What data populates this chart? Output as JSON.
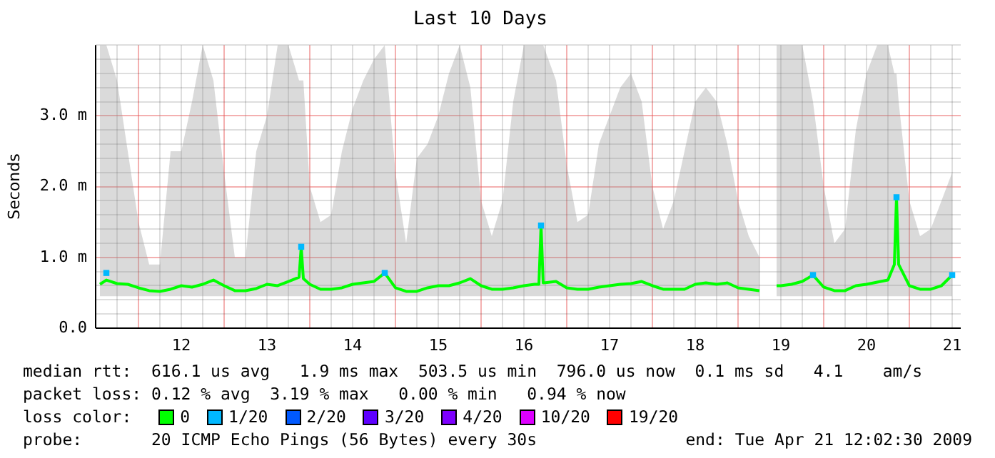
{
  "chart_data": {
    "type": "line",
    "title": "Last 10 Days",
    "ylabel": "Seconds",
    "legend_title": "loss color:",
    "legend": "bottom",
    "grid": true,
    "marker": "none",
    "line_style": "solid",
    "xlim": [
      11.0,
      21.1
    ],
    "ylim": [
      0,
      4
    ],
    "xticks": [
      {
        "value": 11.25,
        "label": null
      },
      {
        "value": 11.5,
        "label": null
      },
      {
        "value": 11.75,
        "label": null
      },
      12,
      {
        "value": 12.25,
        "label": null
      },
      {
        "value": 12.5,
        "label": null
      },
      {
        "value": 12.75,
        "label": null
      },
      13,
      {
        "value": 13.25,
        "label": null
      },
      {
        "value": 13.5,
        "label": null
      },
      {
        "value": 13.75,
        "label": null
      },
      14,
      {
        "value": 14.25,
        "label": null
      },
      {
        "value": 14.5,
        "label": null
      },
      {
        "value": 14.75,
        "label": null
      },
      15,
      {
        "value": 15.25,
        "label": null
      },
      {
        "value": 15.5,
        "label": null
      },
      {
        "value": 15.75,
        "label": null
      },
      16,
      {
        "value": 16.25,
        "label": null
      },
      {
        "value": 16.5,
        "label": null
      },
      {
        "value": 16.75,
        "label": null
      },
      17,
      {
        "value": 17.25,
        "label": null
      },
      {
        "value": 17.5,
        "label": null
      },
      {
        "value": 17.75,
        "label": null
      },
      18,
      {
        "value": 18.25,
        "label": null
      },
      {
        "value": 18.5,
        "label": null
      },
      {
        "value": 18.75,
        "label": null
      },
      19,
      {
        "value": 19.25,
        "label": null
      },
      {
        "value": 19.5,
        "label": null
      },
      {
        "value": 19.75,
        "label": null
      },
      20,
      {
        "value": 20.25,
        "label": null
      },
      {
        "value": 20.5,
        "label": null
      },
      {
        "value": 20.75,
        "label": null
      },
      21
    ],
    "yticks": [
      {
        "value": 0,
        "label": "0.0"
      },
      {
        "value": 0.2,
        "label": null
      },
      {
        "value": 0.4,
        "label": null
      },
      {
        "value": 0.6,
        "label": null
      },
      {
        "value": 0.8,
        "label": null
      },
      {
        "value": 1,
        "label": "1.0 m"
      },
      {
        "value": 1.2,
        "label": null
      },
      {
        "value": 1.4,
        "label": null
      },
      {
        "value": 1.6,
        "label": null
      },
      {
        "value": 1.8,
        "label": null
      },
      {
        "value": 2,
        "label": "2.0 m"
      },
      {
        "value": 2.2,
        "label": null
      },
      {
        "value": 2.4,
        "label": null
      },
      {
        "value": 2.6,
        "label": null
      },
      {
        "value": 2.8,
        "label": null
      },
      {
        "value": 3,
        "label": "3.0 m"
      },
      {
        "value": 3.2,
        "label": null
      },
      {
        "value": 3.4,
        "label": null
      },
      {
        "value": 3.6,
        "label": null
      },
      {
        "value": 3.8,
        "label": null
      },
      {
        "value": 4,
        "label": null
      }
    ],
    "x": [
      11.05,
      11.125,
      11.25,
      11.375,
      11.5,
      11.625,
      11.75,
      11.875,
      12.0,
      12.125,
      12.25,
      12.375,
      12.5,
      12.625,
      12.75,
      12.875,
      13.0,
      13.125,
      13.25,
      13.375,
      13.4,
      13.425,
      13.5,
      13.625,
      13.75,
      13.875,
      14.0,
      14.125,
      14.25,
      14.375,
      14.5,
      14.625,
      14.75,
      14.875,
      15.0,
      15.125,
      15.25,
      15.375,
      15.5,
      15.625,
      15.75,
      15.875,
      16.0,
      16.125,
      16.175,
      16.2,
      16.225,
      16.375,
      16.5,
      16.625,
      16.75,
      16.875,
      17.0,
      17.125,
      17.25,
      17.375,
      17.5,
      17.625,
      17.75,
      17.875,
      18.0,
      18.125,
      18.25,
      18.375,
      18.5,
      18.625,
      18.75,
      18.85,
      18.95,
      19.0,
      19.125,
      19.25,
      19.375,
      19.5,
      19.625,
      19.75,
      19.875,
      20.0,
      20.125,
      20.25,
      20.325,
      20.35,
      20.375,
      20.5,
      20.625,
      20.75,
      20.875,
      21.0
    ],
    "series": [
      {
        "name": "0",
        "color": "#00ff00",
        "values": [
          0.62,
          0.68,
          0.63,
          0.62,
          0.57,
          0.53,
          0.52,
          0.55,
          0.6,
          0.58,
          0.62,
          0.68,
          0.6,
          0.53,
          0.53,
          0.56,
          0.62,
          0.6,
          0.66,
          0.72,
          1.15,
          0.7,
          0.62,
          0.55,
          0.55,
          0.57,
          0.62,
          0.64,
          0.66,
          0.78,
          0.57,
          0.52,
          0.52,
          0.57,
          0.6,
          0.6,
          0.64,
          0.7,
          0.6,
          0.55,
          0.55,
          0.57,
          0.6,
          0.62,
          0.62,
          1.45,
          0.64,
          0.66,
          0.57,
          0.55,
          0.55,
          0.58,
          0.6,
          0.62,
          0.63,
          0.66,
          0.6,
          0.55,
          0.55,
          0.55,
          0.62,
          0.64,
          0.62,
          0.64,
          0.57,
          0.55,
          0.53,
          null,
          0.6,
          0.6,
          0.62,
          0.66,
          0.75,
          0.58,
          0.53,
          0.53,
          0.6,
          0.62,
          0.65,
          0.68,
          0.9,
          1.85,
          0.9,
          0.6,
          0.55,
          0.55,
          0.6,
          0.75
        ],
        "lower": [
          0.45,
          0.45,
          0.45,
          0.45,
          0.45,
          0.45,
          0.45,
          0.45,
          0.45,
          0.45,
          0.45,
          0.45,
          0.45,
          0.45,
          0.45,
          0.45,
          0.45,
          0.45,
          0.45,
          0.45,
          0.45,
          0.45,
          0.45,
          0.45,
          0.45,
          0.45,
          0.45,
          0.45,
          0.45,
          0.45,
          0.45,
          0.45,
          0.45,
          0.45,
          0.45,
          0.45,
          0.45,
          0.45,
          0.45,
          0.45,
          0.45,
          0.45,
          0.45,
          0.45,
          0.45,
          0.45,
          0.45,
          0.45,
          0.45,
          0.45,
          0.45,
          0.45,
          0.45,
          0.45,
          0.45,
          0.45,
          0.45,
          0.45,
          0.45,
          0.45,
          0.45,
          0.45,
          0.45,
          0.45,
          0.45,
          0.45,
          0.45,
          null,
          0.45,
          0.45,
          0.45,
          0.45,
          0.45,
          0.45,
          0.45,
          0.45,
          0.45,
          0.45,
          0.45,
          0.45,
          0.45,
          0.45,
          0.45,
          0.45,
          0.45,
          0.45,
          0.45,
          0.45
        ],
        "upper": [
          4,
          4,
          3.5,
          2.5,
          1.5,
          0.9,
          0.9,
          2.5,
          2.5,
          3.2,
          4,
          3.5,
          2.2,
          1,
          1,
          2.5,
          3,
          4,
          4,
          3.5,
          3.5,
          3.5,
          2,
          1.5,
          1.6,
          2.5,
          3.1,
          3.5,
          3.8,
          4,
          2.2,
          1.2,
          2.4,
          2.6,
          3,
          3.6,
          4,
          3.4,
          1.8,
          1.3,
          1.8,
          3.2,
          4,
          4,
          4,
          4,
          4,
          3.5,
          2.3,
          1.5,
          1.6,
          2.6,
          3,
          3.4,
          3.6,
          3.2,
          2,
          1.4,
          1.8,
          2.5,
          3.2,
          3.4,
          3.2,
          2.6,
          1.8,
          1.3,
          1,
          null,
          4,
          4,
          4,
          4,
          3.2,
          2,
          1.2,
          1.4,
          2.8,
          3.6,
          4,
          4,
          3.6,
          3.6,
          3.2,
          1.8,
          1.3,
          1.4,
          1.8,
          2.2
        ]
      },
      {
        "name": "1/20",
        "color": "#00b8ff",
        "type": "scatter",
        "marker": "square",
        "x": [
          11.125,
          13.4,
          14.375,
          16.2,
          19.375,
          20.35,
          21.0
        ],
        "values": [
          0.78,
          1.15,
          0.78,
          1.45,
          0.75,
          1.85,
          0.75
        ]
      },
      {
        "name": "2/20",
        "color": "#0059ff",
        "values": [
          null,
          null,
          null,
          null,
          null,
          null,
          null,
          null,
          null,
          null,
          null,
          null,
          null,
          null,
          null,
          null,
          null,
          null,
          null,
          null,
          null,
          null,
          null,
          null,
          null,
          null,
          null,
          null,
          null,
          null,
          null,
          null,
          null,
          null,
          null,
          null,
          null,
          null,
          null,
          null,
          null,
          null,
          null,
          null,
          null,
          null,
          null,
          null,
          null,
          null,
          null,
          null,
          null,
          null,
          null,
          null,
          null,
          null,
          null,
          null,
          null,
          null,
          null,
          null,
          null,
          null,
          null,
          null,
          null,
          null,
          null,
          null,
          null,
          null,
          null,
          null,
          null,
          null,
          null,
          null,
          null,
          null,
          null,
          null,
          null,
          null,
          null,
          null
        ]
      },
      {
        "name": "3/20",
        "color": "#5e00ff",
        "values": [
          null,
          null,
          null,
          null,
          null,
          null,
          null,
          null,
          null,
          null,
          null,
          null,
          null,
          null,
          null,
          null,
          null,
          null,
          null,
          null,
          null,
          null,
          null,
          null,
          null,
          null,
          null,
          null,
          null,
          null,
          null,
          null,
          null,
          null,
          null,
          null,
          null,
          null,
          null,
          null,
          null,
          null,
          null,
          null,
          null,
          null,
          null,
          null,
          null,
          null,
          null,
          null,
          null,
          null,
          null,
          null,
          null,
          null,
          null,
          null,
          null,
          null,
          null,
          null,
          null,
          null,
          null,
          null,
          null,
          null,
          null,
          null,
          null,
          null,
          null,
          null,
          null,
          null,
          null,
          null,
          null,
          null,
          null,
          null,
          null,
          null,
          null,
          null
        ]
      },
      {
        "name": "4/20",
        "color": "#7e00ff",
        "values": [
          null,
          null,
          null,
          null,
          null,
          null,
          null,
          null,
          null,
          null,
          null,
          null,
          null,
          null,
          null,
          null,
          null,
          null,
          null,
          null,
          null,
          null,
          null,
          null,
          null,
          null,
          null,
          null,
          null,
          null,
          null,
          null,
          null,
          null,
          null,
          null,
          null,
          null,
          null,
          null,
          null,
          null,
          null,
          null,
          null,
          null,
          null,
          null,
          null,
          null,
          null,
          null,
          null,
          null,
          null,
          null,
          null,
          null,
          null,
          null,
          null,
          null,
          null,
          null,
          null,
          null,
          null,
          null,
          null,
          null,
          null,
          null,
          null,
          null,
          null,
          null,
          null,
          null,
          null,
          null,
          null,
          null,
          null,
          null,
          null,
          null,
          null,
          null
        ]
      },
      {
        "name": "10/20",
        "color": "#dd00ff",
        "values": [
          null,
          null,
          null,
          null,
          null,
          null,
          null,
          null,
          null,
          null,
          null,
          null,
          null,
          null,
          null,
          null,
          null,
          null,
          null,
          null,
          null,
          null,
          null,
          null,
          null,
          null,
          null,
          null,
          null,
          null,
          null,
          null,
          null,
          null,
          null,
          null,
          null,
          null,
          null,
          null,
          null,
          null,
          null,
          null,
          null,
          null,
          null,
          null,
          null,
          null,
          null,
          null,
          null,
          null,
          null,
          null,
          null,
          null,
          null,
          null,
          null,
          null,
          null,
          null,
          null,
          null,
          null,
          null,
          null,
          null,
          null,
          null,
          null,
          null,
          null,
          null,
          null,
          null,
          null,
          null,
          null,
          null,
          null,
          null,
          null,
          null,
          null,
          null
        ]
      },
      {
        "name": "19/20",
        "color": "#ff0000",
        "values": [
          null,
          null,
          null,
          null,
          null,
          null,
          null,
          null,
          null,
          null,
          null,
          null,
          null,
          null,
          null,
          null,
          null,
          null,
          null,
          null,
          null,
          null,
          null,
          null,
          null,
          null,
          null,
          null,
          null,
          null,
          null,
          null,
          null,
          null,
          null,
          null,
          null,
          null,
          null,
          null,
          null,
          null,
          null,
          null,
          null,
          null,
          null,
          null,
          null,
          null,
          null,
          null,
          null,
          null,
          null,
          null,
          null,
          null,
          null,
          null,
          null,
          null,
          null,
          null,
          null,
          null,
          null,
          null,
          null,
          null,
          null,
          null,
          null,
          null,
          null,
          null,
          null,
          null,
          null,
          null,
          null,
          null,
          null,
          null,
          null,
          null,
          null,
          null
        ]
      }
    ],
    "annotations": [
      "median rtt:  616.1 us avg   1.9 ms max  503.5 us min  796.0 us now  0.1 ms sd   4.1    am/s",
      "packet loss: 0.12 % avg  3.19 % max   0.00 % min   0.94 % now",
      "probe:       20 ICMP Echo Pings (56 Bytes) every 30s",
      "end: Tue Apr 21 12:02:30 2009"
    ]
  }
}
